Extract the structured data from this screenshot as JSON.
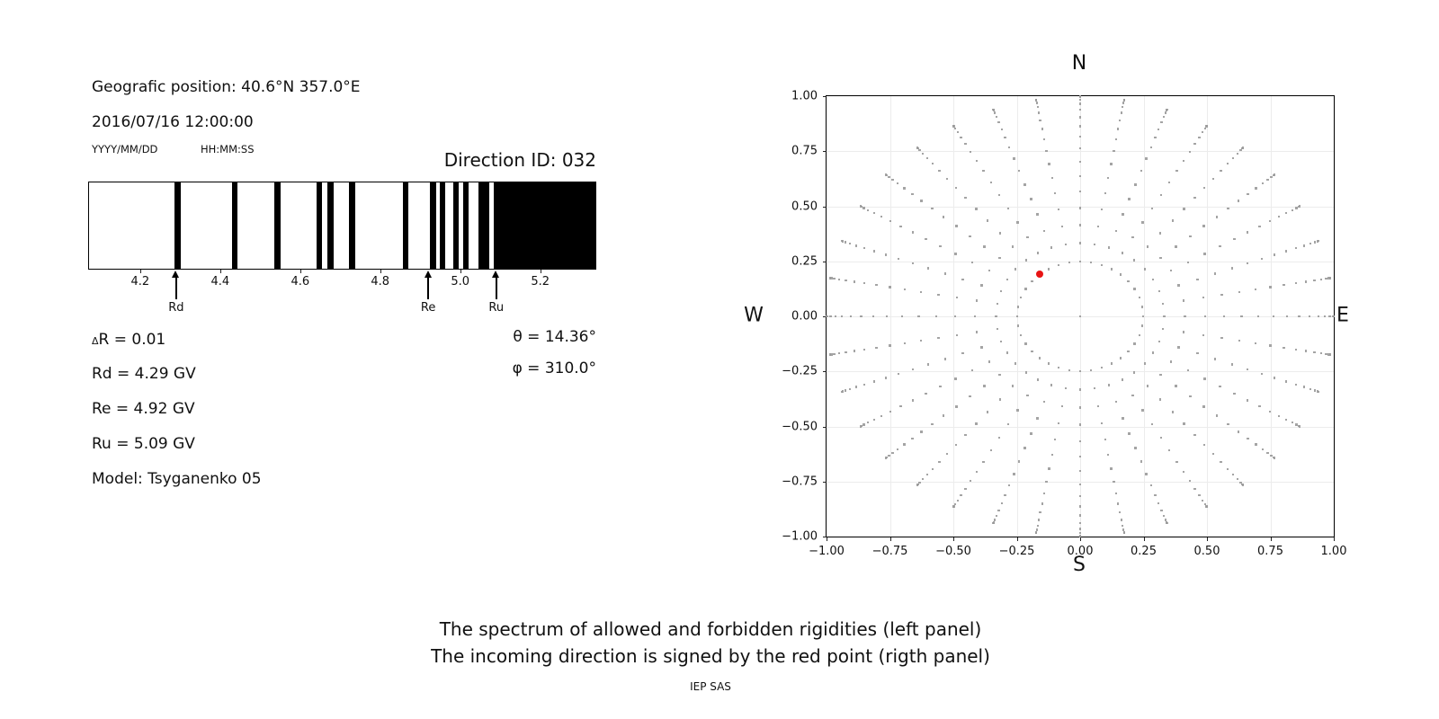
{
  "left_panel": {
    "geo_position": "Geografic position: 40.6°N 357.0°E",
    "datetime": "2016/07/16 12:00:00",
    "date_format_hint": "YYYY/MM/DD",
    "time_format_hint": "HH:MM:SS",
    "direction_id": "Direction ID: 032",
    "delta_symbol": "Δ",
    "delta_r_rest": "R = 0.01",
    "value_lines": [
      "Rd = 4.29 GV",
      "Re = 4.92 GV",
      "Ru = 5.09 GV",
      "Model: Tsyganenko 05"
    ],
    "theta": "θ = 14.36°",
    "phi": "φ = 310.0°"
  },
  "captions": {
    "line1": "The spectrum of allowed and forbidden rigidities (left panel)",
    "line2": "The incoming direction is signed by the red point (rigth panel)",
    "credit": "IEP SAS"
  },
  "chart_data": [
    {
      "type": "bar",
      "name": "rigidity-spectrum",
      "description": "Penumbra barcode: black = forbidden rigidities, white = allowed",
      "x_range_gv": [
        4.07,
        5.34
      ],
      "x_ticks": [
        4.2,
        4.4,
        4.6,
        4.8,
        5.0,
        5.2
      ],
      "x_tick_labels": [
        "4.2",
        "4.4",
        "4.6",
        "4.8",
        "5.0",
        "5.2"
      ],
      "forbidden_bands_gv": [
        [
          4.285,
          4.3
        ],
        [
          4.428,
          4.443
        ],
        [
          4.535,
          4.55
        ],
        [
          4.64,
          4.655
        ],
        [
          4.668,
          4.683
        ],
        [
          4.722,
          4.737
        ],
        [
          4.857,
          4.87
        ],
        [
          4.926,
          4.941
        ],
        [
          4.95,
          4.963
        ],
        [
          4.984,
          4.998
        ],
        [
          5.008,
          5.022
        ],
        [
          5.046,
          5.074
        ],
        [
          5.085,
          5.34
        ]
      ],
      "band_color": "#000000",
      "allowed_color": "#ffffff",
      "markers": [
        {
          "label": "Rd",
          "value_gv": 4.29
        },
        {
          "label": "Re",
          "value_gv": 4.92
        },
        {
          "label": "Ru",
          "value_gv": 5.09
        }
      ]
    },
    {
      "type": "scatter",
      "name": "incoming-direction-sky-map",
      "xlim": [
        -1.0,
        1.0
      ],
      "ylim": [
        -1.0,
        1.0
      ],
      "x_ticks": [
        -1.0,
        -0.75,
        -0.5,
        -0.25,
        0.0,
        0.25,
        0.5,
        0.75,
        1.0
      ],
      "x_tick_labels": [
        "−1.00",
        "−0.75",
        "−0.50",
        "−0.25",
        "0.00",
        "0.25",
        "0.50",
        "0.75",
        "1.00"
      ],
      "y_ticks": [
        1.0,
        0.75,
        0.5,
        0.25,
        0.0,
        -0.25,
        -0.5,
        -0.75,
        -1.0
      ],
      "y_tick_labels": [
        "1.00",
        "0.75",
        "0.50",
        "0.25",
        "0.00",
        "−0.25",
        "−0.50",
        "−0.75",
        "−1.00"
      ],
      "compass_labels": {
        "top": "N",
        "bottom": "S",
        "left": "W",
        "right": "E"
      },
      "grid": true,
      "dot_color": "#9a9a9a",
      "rays": {
        "azimuth_start_deg": 0,
        "azimuth_step_deg": 10,
        "azimuth_count": 36,
        "zenith_min_deg": 14.36,
        "zenith_max_deg": 90,
        "points_per_ray": 16,
        "radius_mapping": "sin(zenith)",
        "center_point": true
      },
      "red_point": {
        "x": -0.158,
        "y": 0.191,
        "color": "#e81414"
      }
    }
  ]
}
